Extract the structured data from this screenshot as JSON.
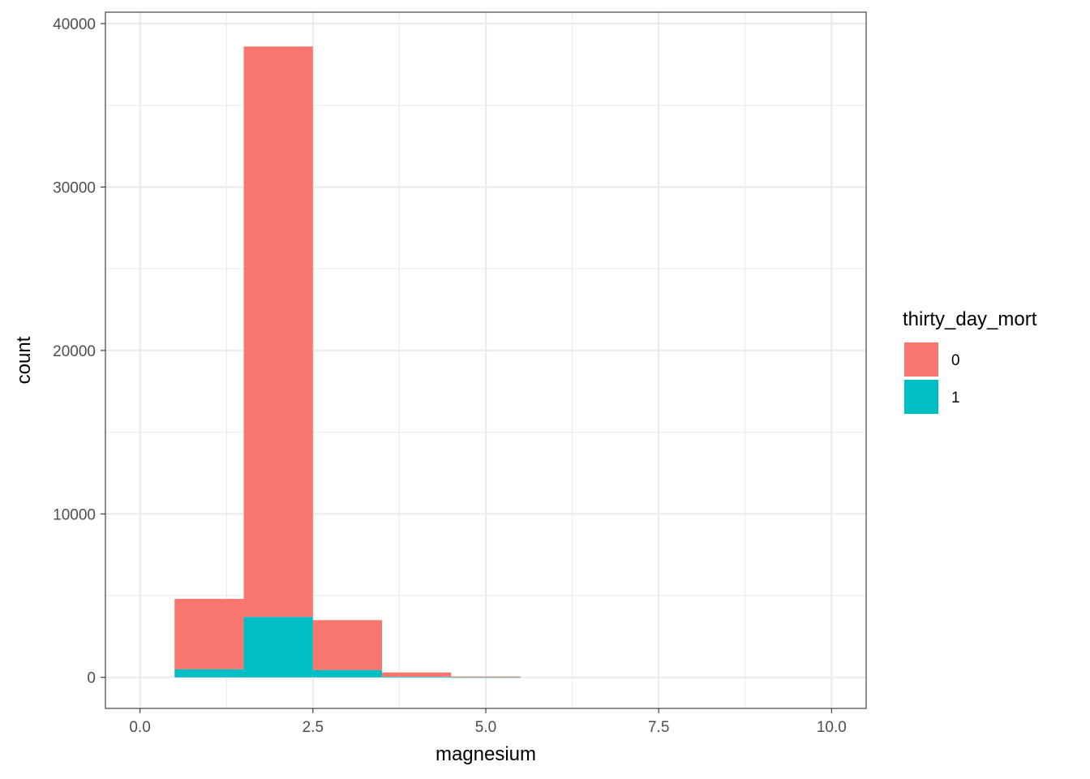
{
  "chart_data": {
    "type": "bar",
    "subtype": "stacked-histogram",
    "xlabel": "magnesium",
    "ylabel": "count",
    "xlim": [
      -0.5,
      10.5
    ],
    "ylim": [
      -1900,
      40700
    ],
    "x_ticks": [
      0,
      2.5,
      5,
      7.5,
      10
    ],
    "x_tick_labels": [
      "0.0",
      "2.5",
      "5.0",
      "7.5",
      "10.0"
    ],
    "y_ticks": [
      0,
      10000,
      20000,
      30000,
      40000
    ],
    "y_tick_labels": [
      "0",
      "10000",
      "20000",
      "30000",
      "40000"
    ],
    "bin_width": 1,
    "bins": [
      1,
      2,
      3,
      4,
      5
    ],
    "series": [
      {
        "name": "1",
        "color": "#00BFC4",
        "values": [
          500,
          3700,
          450,
          40,
          5
        ]
      },
      {
        "name": "0",
        "color": "#F8766D",
        "values": [
          4300,
          34900,
          3050,
          260,
          45
        ]
      }
    ],
    "grid": true,
    "legend": {
      "title": "thirty_day_mort",
      "position": "right",
      "entries": [
        {
          "label": "0",
          "color": "#F8766D"
        },
        {
          "label": "1",
          "color": "#00BFC4"
        }
      ]
    }
  }
}
